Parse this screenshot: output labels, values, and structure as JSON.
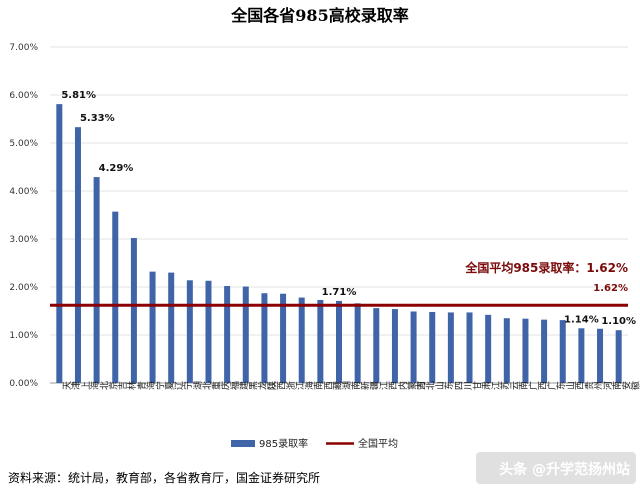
{
  "chart_data": {
    "type": "bar",
    "title": "全国各省985高校录取率",
    "categories": [
      "天津",
      "上海",
      "北京",
      "吉林",
      "青海",
      "宁夏",
      "辽宁",
      "湖北",
      "重庆",
      "福建",
      "黑龙江",
      "陕西",
      "浙江",
      "海南",
      "西藏",
      "湖南",
      "新疆",
      "江西",
      "内蒙古",
      "河北",
      "山东",
      "四川",
      "甘肃",
      "江苏",
      "云南",
      "广西",
      "广东",
      "山西",
      "贵州",
      "河南",
      "安徽"
    ],
    "series": [
      {
        "name": "985录取率",
        "color": "#3f64a8",
        "values": [
          5.81,
          5.33,
          4.29,
          3.57,
          3.02,
          2.32,
          2.3,
          2.14,
          2.13,
          2.02,
          2.01,
          1.87,
          1.86,
          1.78,
          1.73,
          1.71,
          1.66,
          1.56,
          1.54,
          1.49,
          1.48,
          1.47,
          1.47,
          1.42,
          1.35,
          1.34,
          1.32,
          1.31,
          1.14,
          1.13,
          1.1
        ]
      }
    ],
    "reference_line": {
      "name": "全国平均",
      "value": 1.62,
      "color": "#8b0000"
    },
    "ylim": [
      0,
      7
    ],
    "yticks": [
      "0.00%",
      "1.00%",
      "2.00%",
      "3.00%",
      "4.00%",
      "5.00%",
      "6.00%",
      "7.00%"
    ],
    "data_labels": [
      {
        "category_index": 0,
        "text": "5.81%"
      },
      {
        "category_index": 1,
        "text": "5.33%"
      },
      {
        "category_index": 2,
        "text": "4.29%"
      },
      {
        "category_index": 15,
        "text": "1.71%"
      },
      {
        "category_index": 28,
        "text": "1.14%"
      },
      {
        "category_index": 30,
        "text": "1.10%"
      }
    ],
    "annotation": "全国平均985录取率：1.62%",
    "reference_label": "1.62%",
    "grid": true,
    "legend_position": "bottom"
  },
  "footer": {
    "source": "资料来源：统计局，教育部，各省教育厅，国金证券研究所",
    "watermark": "头条 @升学范扬州站"
  }
}
